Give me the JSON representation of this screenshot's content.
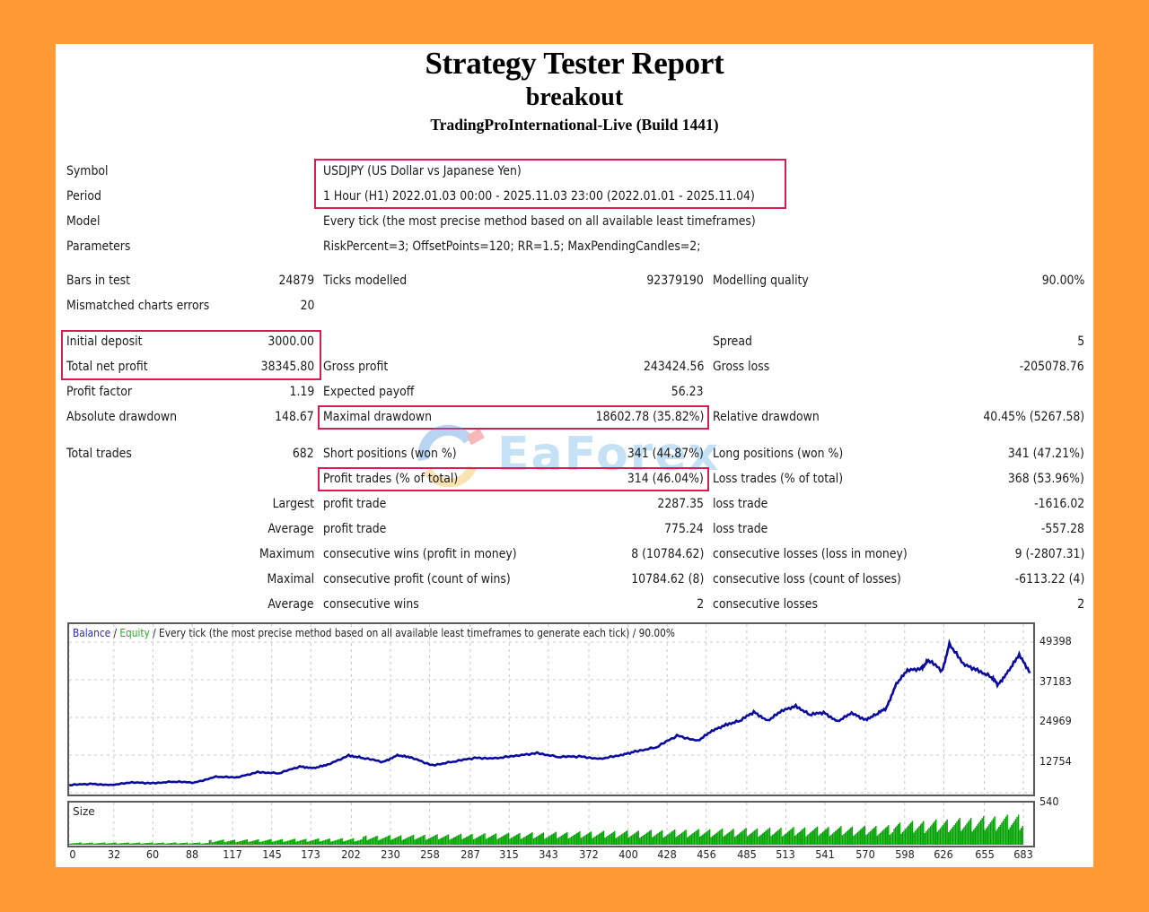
{
  "header": {
    "title": "Strategy Tester Report",
    "expert": "breakout",
    "server": "TradingProInternational-Live (Build 1441)"
  },
  "settings": {
    "symbol_label": "Symbol",
    "symbol_value": "USDJPY (US Dollar vs Japanese Yen)",
    "period_label": "Period",
    "period_value": "1 Hour (H1) 2022.01.03 00:00 - 2025.11.03 23:00 (2022.01.01 - 2025.11.04)",
    "model_label": "Model",
    "model_value": "Every tick (the most precise method based on all available least timeframes)",
    "parameters_label": "Parameters",
    "parameters_value": "RiskPercent=3; OffsetPoints=120; RR=1.5; MaxPendingCandles=2;"
  },
  "modelling": {
    "bars_label": "Bars in test",
    "bars_value": "24879",
    "ticks_label": "Ticks modelled",
    "ticks_value": "92379190",
    "quality_label": "Modelling quality",
    "quality_value": "90.00%",
    "mismatch_label": "Mismatched charts errors",
    "mismatch_value": "20"
  },
  "results": {
    "initial_deposit_label": "Initial deposit",
    "initial_deposit_value": "3000.00",
    "spread_label": "Spread",
    "spread_value": "5",
    "net_profit_label": "Total net profit",
    "net_profit_value": "38345.80",
    "gross_profit_label": "Gross profit",
    "gross_profit_value": "243424.56",
    "gross_loss_label": "Gross loss",
    "gross_loss_value": "-205078.76",
    "profit_factor_label": "Profit factor",
    "profit_factor_value": "1.19",
    "expected_payoff_label": "Expected payoff",
    "expected_payoff_value": "56.23",
    "abs_dd_label": "Absolute drawdown",
    "abs_dd_value": "148.67",
    "max_dd_label": "Maximal drawdown",
    "max_dd_value": "18602.78 (35.82%)",
    "rel_dd_label": "Relative drawdown",
    "rel_dd_value": "40.45% (5267.58)"
  },
  "trades": {
    "total_label": "Total trades",
    "total_value": "682",
    "short_label": "Short positions (won %)",
    "short_value": "341 (44.87%)",
    "long_label": "Long positions (won %)",
    "long_value": "341 (47.21%)",
    "profit_trades_label": "Profit trades (% of total)",
    "profit_trades_value": "314 (46.04%)",
    "loss_trades_label": "Loss trades (% of total)",
    "loss_trades_value": "368 (53.96%)",
    "rows": [
      {
        "prefix": "Largest",
        "p_label": "profit trade",
        "p_value": "2287.35",
        "l_label": "loss trade",
        "l_value": "-1616.02"
      },
      {
        "prefix": "Average",
        "p_label": "profit trade",
        "p_value": "775.24",
        "l_label": "loss trade",
        "l_value": "-557.28"
      },
      {
        "prefix": "Maximum",
        "p_label": "consecutive wins (profit in money)",
        "p_value": "8 (10784.62)",
        "l_label": "consecutive losses (loss in money)",
        "l_value": "9 (-2807.31)"
      },
      {
        "prefix": "Maximal",
        "p_label": "consecutive profit (count of wins)",
        "p_value": "10784.62 (8)",
        "l_label": "consecutive loss (count of losses)",
        "l_value": "-6113.22 (4)"
      },
      {
        "prefix": "Average",
        "p_label": "consecutive wins",
        "p_value": "2",
        "l_label": "consecutive losses",
        "l_value": "2"
      }
    ]
  },
  "watermark": {
    "text": "EaForex"
  },
  "chart_legend": {
    "balance": "Balance",
    "sep1": " / ",
    "equity": "Equity",
    "rest": " / Every tick (the most precise method based on all available least timeframes to generate each tick) / 90.00%"
  },
  "size_label": "Size",
  "colors": {
    "page_bg": "#FF9933",
    "highlight_border": "#D81B50",
    "balance_line": "#0A0AA0",
    "equity_line": "#22B022",
    "size_bars": "#00A000"
  },
  "chart_data": {
    "type": "line",
    "title": "Balance / Equity / Every tick (the most precise method based on all available least timeframes to generate each tick) / 90.00%",
    "xlabel": "Trade #",
    "ylabel": "Balance",
    "x_ticks": [
      0,
      32,
      60,
      88,
      117,
      145,
      173,
      202,
      230,
      258,
      287,
      315,
      343,
      372,
      400,
      428,
      456,
      485,
      513,
      541,
      570,
      598,
      626,
      655,
      683
    ],
    "y_ticks": [
      540,
      12754,
      24969,
      37183,
      49398
    ],
    "ylim": [
      540,
      53000
    ],
    "xlim": [
      0,
      690
    ],
    "grid": true,
    "legend": [
      "Balance",
      "Equity"
    ],
    "series": [
      {
        "name": "Balance",
        "x": [
          0,
          15,
          30,
          45,
          60,
          75,
          90,
          105,
          120,
          135,
          150,
          165,
          175,
          185,
          200,
          210,
          225,
          235,
          245,
          260,
          275,
          290,
          305,
          320,
          335,
          350,
          365,
          380,
          395,
          405,
          420,
          435,
          450,
          460,
          470,
          480,
          490,
          500,
          510,
          520,
          530,
          540,
          550,
          560,
          570,
          578,
          585,
          592,
          600,
          610,
          615,
          625,
          630,
          640,
          650,
          660,
          665,
          672,
          680,
          688
        ],
        "values": [
          3000,
          3400,
          3100,
          3800,
          3700,
          4100,
          3800,
          5800,
          5400,
          7300,
          6800,
          9000,
          8600,
          9500,
          12700,
          11800,
          10500,
          12800,
          11800,
          9500,
          10600,
          11800,
          11800,
          12400,
          13500,
          12100,
          12300,
          11600,
          12600,
          14000,
          15200,
          19000,
          17500,
          20400,
          22700,
          23800,
          26700,
          24000,
          26900,
          28800,
          25800,
          26500,
          23800,
          26200,
          24300,
          26000,
          28000,
          36000,
          40000,
          41000,
          43500,
          40000,
          49000,
          42000,
          40500,
          38000,
          35500,
          40000,
          45000,
          39500
        ]
      }
    ],
    "size_panel": {
      "label": "Size",
      "type": "bar",
      "trend": "increasing lot size from ~1 unit at start to ~12 units near trade 626"
    }
  }
}
